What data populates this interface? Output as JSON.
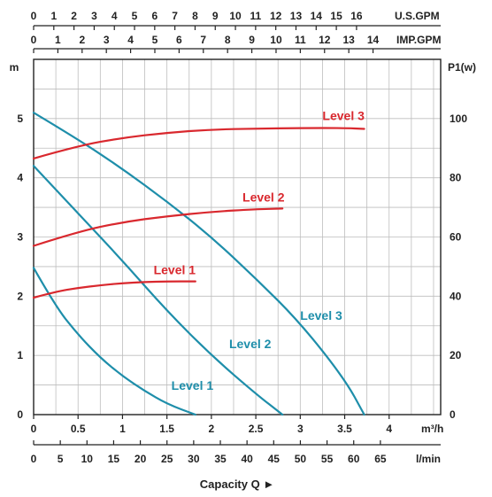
{
  "chart_data": {
    "type": "line",
    "x": {
      "label": "m³/h",
      "range": [
        0,
        4.58
      ],
      "ticks": [
        "0",
        "0.5",
        "1",
        "1.5",
        "2",
        "2.5",
        "3",
        "3.5",
        "4"
      ]
    },
    "x_secondary_lmin": {
      "label": "l/min",
      "range": [
        0,
        76.3
      ],
      "ticks": [
        "0",
        "5",
        "10",
        "15",
        "20",
        "25",
        "30",
        "35",
        "40",
        "45",
        "50",
        "55",
        "60",
        "65"
      ]
    },
    "x_top_usgpm": {
      "label": "U.S.GPM",
      "range": [
        0,
        20.17
      ],
      "ticks": [
        "0",
        "1",
        "2",
        "3",
        "4",
        "5",
        "6",
        "7",
        "8",
        "9",
        "10",
        "11",
        "12",
        "13",
        "14",
        "15",
        "16"
      ]
    },
    "x_top_impgpm": {
      "label": "IMP.GPM",
      "range": [
        0,
        16.79
      ],
      "ticks": [
        "0",
        "1",
        "2",
        "3",
        "4",
        "5",
        "6",
        "7",
        "8",
        "9",
        "10",
        "11",
        "12",
        "13",
        "14"
      ]
    },
    "y_left": {
      "label": "m",
      "range": [
        0,
        6
      ],
      "ticks": [
        "0",
        "1",
        "2",
        "3",
        "4",
        "5"
      ]
    },
    "y_right": {
      "label": "P1(w)",
      "range": [
        0,
        120
      ],
      "ticks": [
        "0",
        "20",
        "40",
        "60",
        "80",
        "100"
      ]
    },
    "xlabel": "Capacity Q ►",
    "grid": true,
    "series": [
      {
        "name": "Level 1",
        "kind": "head",
        "axis": "y_left",
        "color": "#1e8eaa",
        "x": [
          0,
          0.25,
          0.5,
          0.75,
          1.0,
          1.25,
          1.5,
          1.82
        ],
        "y": [
          2.48,
          1.82,
          1.35,
          0.96,
          0.65,
          0.4,
          0.18,
          0
        ]
      },
      {
        "name": "Level 2",
        "kind": "head",
        "axis": "y_left",
        "color": "#1e8eaa",
        "x": [
          0,
          0.5,
          1.0,
          1.5,
          2.0,
          2.5,
          2.8
        ],
        "y": [
          4.2,
          3.4,
          2.6,
          1.75,
          1.0,
          0.35,
          0
        ]
      },
      {
        "name": "Level 3",
        "kind": "head",
        "axis": "y_left",
        "color": "#1e8eaa",
        "x": [
          0,
          0.5,
          1.0,
          1.5,
          2.0,
          2.5,
          3.0,
          3.5,
          3.72
        ],
        "y": [
          5.1,
          4.65,
          4.15,
          3.6,
          3.0,
          2.3,
          1.55,
          0.6,
          0
        ]
      },
      {
        "name": "Level 1",
        "kind": "power",
        "axis": "y_right",
        "color": "#d9282e",
        "x": [
          0,
          0.25,
          0.5,
          0.75,
          1.0,
          1.25,
          1.5,
          1.82
        ],
        "y": [
          39.5,
          41.5,
          42.8,
          43.7,
          44.4,
          44.8,
          45.0,
          45.0
        ]
      },
      {
        "name": "Level 2",
        "kind": "power",
        "axis": "y_right",
        "color": "#d9282e",
        "x": [
          0,
          0.5,
          1.0,
          1.5,
          2.0,
          2.5,
          2.8
        ],
        "y": [
          57.0,
          61.8,
          65.0,
          67.0,
          68.5,
          69.4,
          69.6
        ]
      },
      {
        "name": "Level 3",
        "kind": "power",
        "axis": "y_right",
        "color": "#d9282e",
        "x": [
          0,
          0.5,
          1.0,
          1.5,
          2.0,
          2.5,
          3.0,
          3.5,
          3.72
        ],
        "y": [
          86.5,
          90.8,
          93.5,
          95.2,
          96.3,
          96.6,
          96.8,
          96.8,
          96.5
        ]
      }
    ]
  }
}
